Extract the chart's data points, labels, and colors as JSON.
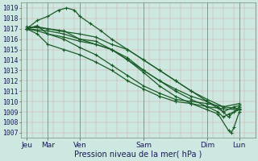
{
  "xlabel": "Pression niveau de la mer( hPa )",
  "ylim": [
    1006.5,
    1019.5
  ],
  "yticks": [
    1007,
    1008,
    1009,
    1010,
    1011,
    1012,
    1013,
    1014,
    1015,
    1016,
    1017,
    1018,
    1019
  ],
  "xtick_labels": [
    "Jeu",
    "Mar",
    "Ven",
    "Sam",
    "Dim",
    "Lun"
  ],
  "xtick_positions": [
    0,
    16,
    40,
    88,
    136,
    160
  ],
  "xlim": [
    -4,
    172
  ],
  "bg_color": "#cce8e0",
  "line_color": "#1a5c28",
  "series": [
    [
      0,
      1017.0,
      8,
      1016.5,
      16,
      1015.5,
      28,
      1015.0,
      40,
      1014.5,
      52,
      1013.8,
      64,
      1013.0,
      76,
      1012.0,
      88,
      1011.2,
      100,
      1010.5,
      112,
      1010.0,
      124,
      1009.8,
      136,
      1009.5,
      148,
      1009.3,
      160,
      1009.2
    ],
    [
      0,
      1017.0,
      8,
      1017.3,
      16,
      1016.5,
      28,
      1016.0,
      40,
      1015.2,
      52,
      1014.5,
      64,
      1013.5,
      76,
      1012.5,
      88,
      1011.5,
      100,
      1010.8,
      112,
      1010.2,
      124,
      1010.0,
      136,
      1009.8,
      148,
      1009.5,
      160,
      1009.3
    ],
    [
      0,
      1017.0,
      8,
      1017.8,
      16,
      1018.2,
      24,
      1018.8,
      30,
      1019.0,
      36,
      1018.8,
      40,
      1018.2,
      48,
      1017.5,
      56,
      1016.8,
      64,
      1016.0,
      76,
      1015.0,
      88,
      1014.0,
      100,
      1013.0,
      112,
      1012.0,
      124,
      1011.0,
      136,
      1010.0,
      148,
      1009.0,
      156,
      1009.5,
      160,
      1009.6
    ],
    [
      0,
      1017.0,
      8,
      1017.2,
      16,
      1017.0,
      24,
      1016.8,
      40,
      1016.5,
      52,
      1016.2,
      64,
      1015.5,
      76,
      1015.0,
      88,
      1014.0,
      100,
      1013.0,
      112,
      1012.0,
      124,
      1011.0,
      136,
      1010.2,
      148,
      1009.5,
      160,
      1009.8
    ],
    [
      0,
      1017.0,
      8,
      1016.8,
      16,
      1016.5,
      28,
      1016.2,
      40,
      1015.8,
      52,
      1015.5,
      64,
      1015.0,
      76,
      1014.0,
      88,
      1012.8,
      100,
      1011.5,
      112,
      1010.5,
      124,
      1009.8,
      136,
      1009.2,
      144,
      1008.8,
      152,
      1007.2,
      154,
      1007.0,
      156,
      1007.5,
      160,
      1009.0
    ],
    [
      0,
      1017.0,
      16,
      1016.8,
      28,
      1016.5,
      40,
      1016.0,
      52,
      1015.5,
      64,
      1015.0,
      76,
      1014.2,
      88,
      1013.0,
      100,
      1012.0,
      112,
      1011.0,
      124,
      1010.2,
      136,
      1009.5,
      144,
      1009.0,
      148,
      1008.5,
      152,
      1008.8,
      160,
      1009.2
    ],
    [
      0,
      1017.2,
      16,
      1017.0,
      28,
      1016.8,
      40,
      1016.0,
      52,
      1015.8,
      64,
      1015.0,
      76,
      1014.0,
      88,
      1013.0,
      100,
      1012.0,
      112,
      1011.2,
      124,
      1010.5,
      136,
      1010.0,
      144,
      1009.5,
      148,
      1009.0,
      152,
      1008.5,
      156,
      1009.0,
      160,
      1009.5
    ]
  ],
  "vline_positions": [
    0,
    16,
    40,
    88,
    136,
    160
  ],
  "minor_vline_step": 8,
  "marker": "+",
  "markersize": 2.5,
  "linewidth": 0.9
}
